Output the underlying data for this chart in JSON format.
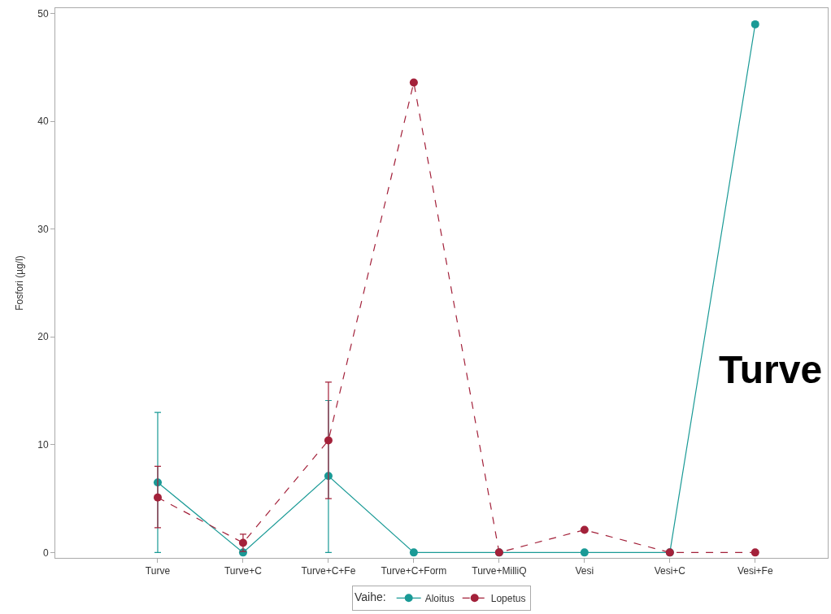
{
  "chart_data": {
    "type": "line",
    "ylabel": "Fosfori (µg/l)",
    "legend_title": "Vaihe:",
    "categories": [
      "Turve",
      "Turve+C",
      "Turve+C+Fe",
      "Turve+C+Form",
      "Turve+MilliQ",
      "Vesi",
      "Vesi+C",
      "Vesi+Fe"
    ],
    "series": [
      {
        "name": "Aloitus",
        "color": "#1a9a96",
        "line_style": "solid",
        "values": [
          6.5,
          0,
          7.1,
          0,
          0,
          0,
          0,
          49
        ],
        "errors": [
          [
            0,
            13
          ],
          null,
          [
            0,
            14.1
          ],
          null,
          null,
          null,
          null,
          null
        ]
      },
      {
        "name": "Lopetus",
        "color": "#a3213a",
        "line_style": "dashed",
        "values": [
          5.1,
          0.9,
          10.4,
          43.6,
          0,
          2.1,
          0,
          0
        ],
        "errors": [
          [
            2.3,
            8.0
          ],
          [
            0.1,
            1.7
          ],
          [
            5.0,
            15.8
          ],
          null,
          null,
          null,
          null,
          null
        ]
      }
    ],
    "ylim": [
      -0.5,
      50.5
    ],
    "yticks": [
      0,
      10,
      20,
      30,
      40,
      50
    ],
    "legend": "bottom",
    "marker": "circle",
    "annotations": [
      "Turve"
    ]
  }
}
